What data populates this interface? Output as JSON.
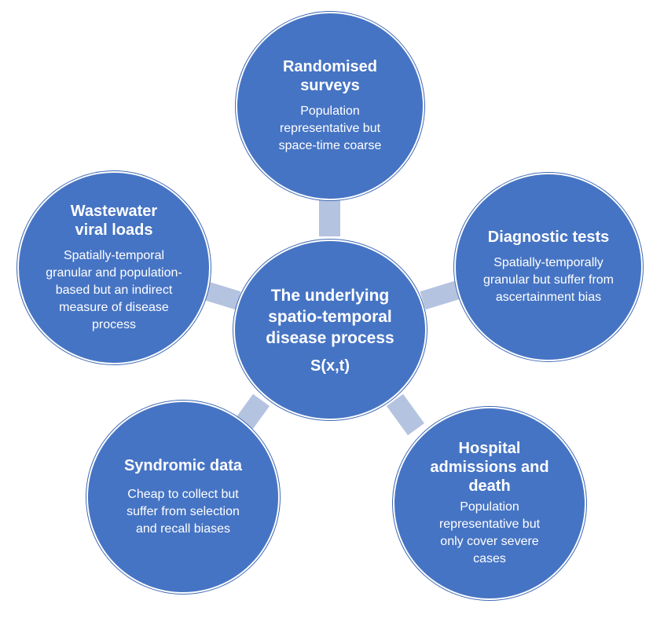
{
  "center": {
    "title": "The underlying spatio-temporal disease process",
    "formula": "S(x,t)"
  },
  "nodes": {
    "surveys": {
      "title": "Randomised surveys",
      "desc": "Population representative but space-time coarse"
    },
    "diagnostic": {
      "title": "Diagnostic tests",
      "desc": "Spatially-temporally granular but suffer from ascertainment bias"
    },
    "hospital": {
      "title": "Hospital admissions and death",
      "desc": "Population representative but only cover severe cases"
    },
    "syndromic": {
      "title": "Syndromic data",
      "desc": "Cheap to collect but suffer from selection and recall biases"
    },
    "wastewater": {
      "title": "Wastewater viral loads",
      "desc": "Spatially-temporal granular and population-based but an indirect measure of disease process"
    }
  },
  "colors": {
    "circle_fill": "#4674c4",
    "connector": "#b4c3e0",
    "text": "#ffffff"
  }
}
